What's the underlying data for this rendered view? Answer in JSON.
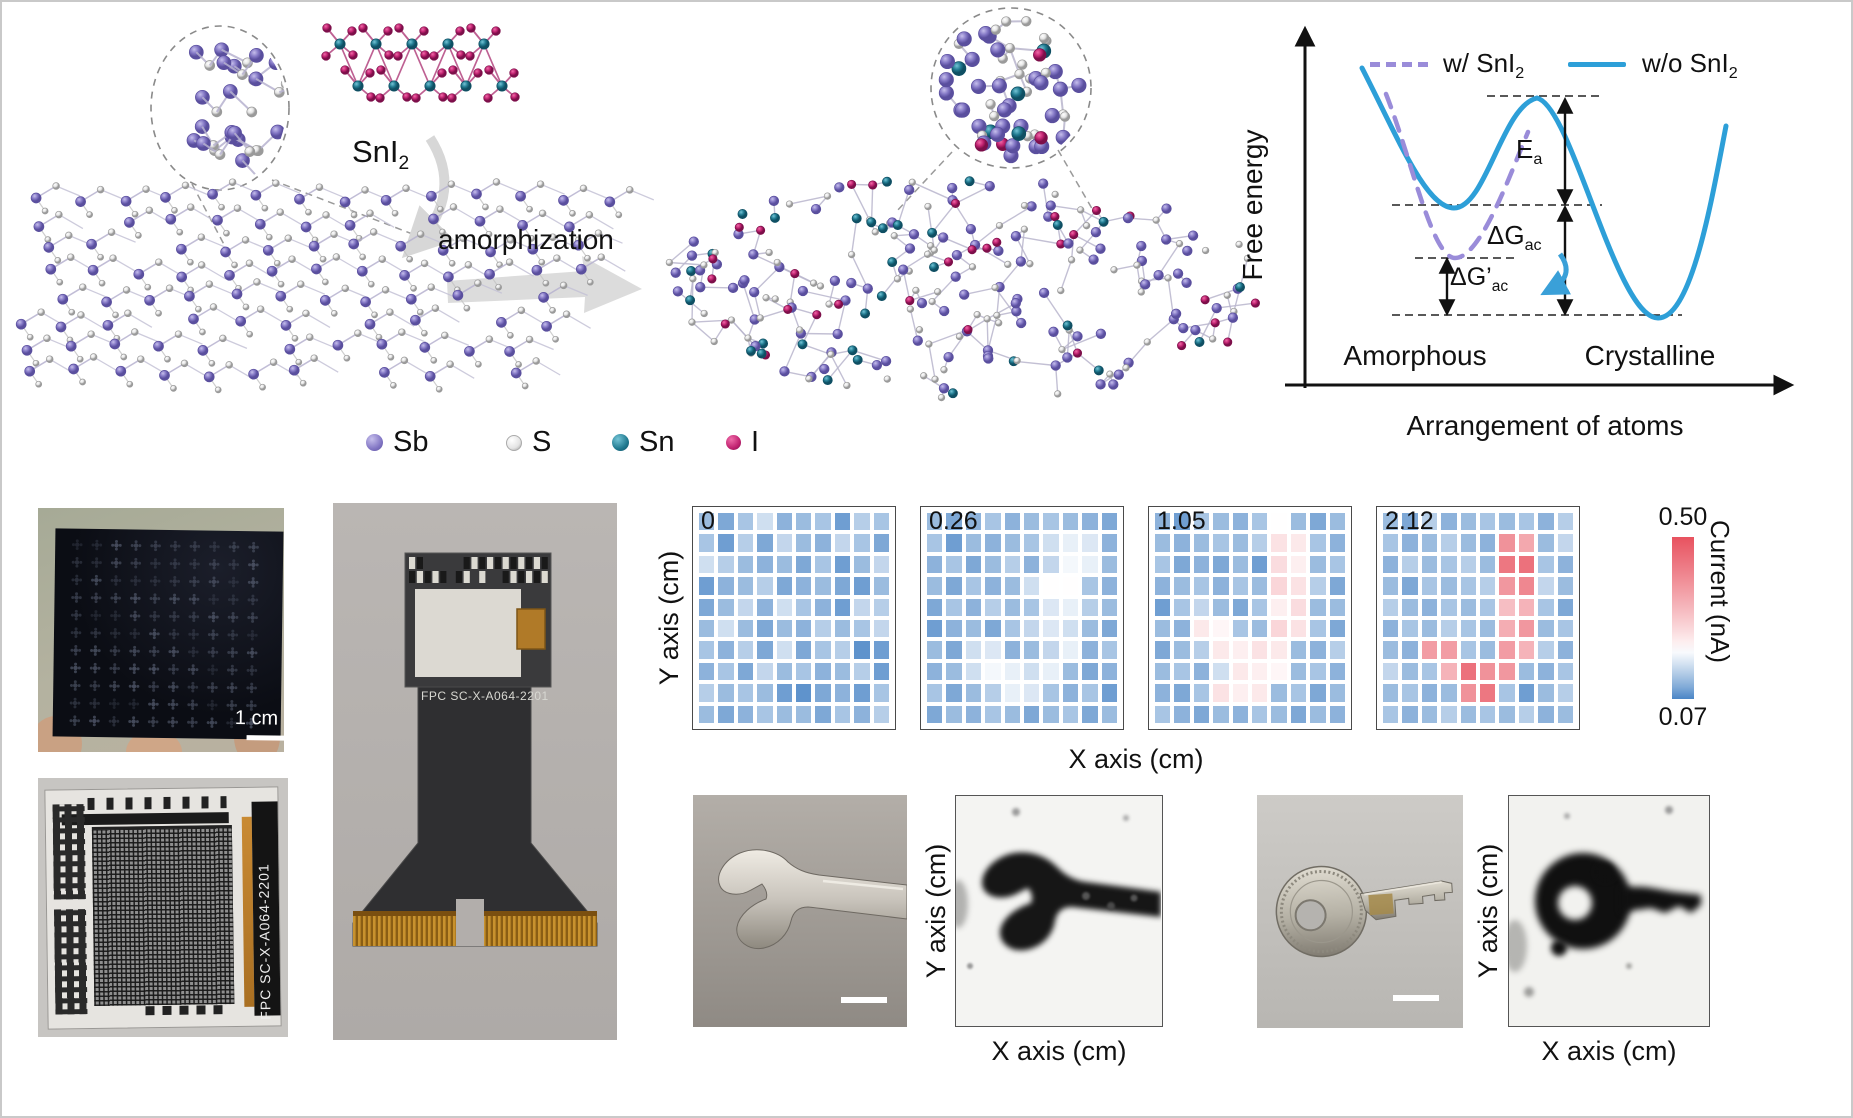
{
  "schematic": {
    "snl2": {
      "base": "SnI",
      "sub": "2"
    },
    "process_label": "amorphization",
    "atom_legend": [
      {
        "symbol": "Sb",
        "color": "#8276c4",
        "highlight": "#c6bfec",
        "edge": "#5a4f9e"
      },
      {
        "symbol": "S",
        "color": "#e4e4e4",
        "highlight": "#ffffff",
        "edge": "#9a9a9a"
      },
      {
        "symbol": "Sn",
        "color": "#20798f",
        "highlight": "#74c4d6",
        "edge": "#0f4f63"
      },
      {
        "symbol": "I",
        "color": "#c02270",
        "highlight": "#ef6ba8",
        "edge": "#7d0f4a"
      }
    ]
  },
  "energy": {
    "y_axis": "Free energy",
    "x_axis": "Arrangement of atoms",
    "legend_w": {
      "base": "w/ SnI",
      "sub": "2"
    },
    "legend_wo": {
      "base": "w/o SnI",
      "sub": "2"
    },
    "colors": {
      "with_snl2": "#9a8cd9",
      "without_snl2": "#2d9fd8"
    },
    "ea": {
      "base": "E",
      "sub": "a"
    },
    "dg_ac": {
      "base": "ΔG",
      "sub": "ac"
    },
    "dg_ac_prime": {
      "base": "ΔG’",
      "sub": "ac"
    },
    "state_left": "Amorphous",
    "state_right": "Crystalline"
  },
  "heatmap_section": {
    "x_axis": "X axis (cm)",
    "y_axis": "Y axis (cm)",
    "colorbar": {
      "title": "Current (nA)",
      "max": "0.50",
      "min": "0.07"
    }
  },
  "chart_data": [
    {
      "type": "heatmap",
      "label": "0",
      "unit": "nA",
      "range": [
        0.07,
        0.5
      ],
      "values": [
        [
          0.12,
          0.1,
          0.13,
          0.16,
          0.11,
          0.12,
          0.13,
          0.09,
          0.14,
          0.13
        ],
        [
          0.13,
          0.09,
          0.14,
          0.1,
          0.15,
          0.12,
          0.11,
          0.15,
          0.13,
          0.1
        ],
        [
          0.16,
          0.14,
          0.12,
          0.11,
          0.12,
          0.1,
          0.13,
          0.09,
          0.12,
          0.15
        ],
        [
          0.09,
          0.11,
          0.12,
          0.14,
          0.1,
          0.11,
          0.12,
          0.1,
          0.09,
          0.12
        ],
        [
          0.1,
          0.12,
          0.15,
          0.11,
          0.16,
          0.13,
          0.11,
          0.09,
          0.15,
          0.14
        ],
        [
          0.12,
          0.16,
          0.12,
          0.1,
          0.12,
          0.11,
          0.14,
          0.12,
          0.13,
          0.15
        ],
        [
          0.13,
          0.11,
          0.14,
          0.1,
          0.16,
          0.1,
          0.13,
          0.14,
          0.08,
          0.09
        ],
        [
          0.11,
          0.13,
          0.1,
          0.15,
          0.12,
          0.13,
          0.11,
          0.12,
          0.14,
          0.09
        ],
        [
          0.14,
          0.12,
          0.13,
          0.12,
          0.09,
          0.08,
          0.1,
          0.11,
          0.09,
          0.13
        ],
        [
          0.12,
          0.1,
          0.11,
          0.13,
          0.12,
          0.12,
          0.1,
          0.13,
          0.11,
          0.14
        ]
      ]
    },
    {
      "type": "heatmap",
      "label": "0.26",
      "unit": "nA",
      "range": [
        0.07,
        0.5
      ],
      "values": [
        [
          0.12,
          0.1,
          0.11,
          0.13,
          0.11,
          0.12,
          0.13,
          0.12,
          0.11,
          0.1
        ],
        [
          0.13,
          0.09,
          0.12,
          0.11,
          0.12,
          0.13,
          0.16,
          0.18,
          0.17,
          0.11
        ],
        [
          0.11,
          0.13,
          0.1,
          0.12,
          0.14,
          0.11,
          0.15,
          0.19,
          0.18,
          0.12
        ],
        [
          0.12,
          0.1,
          0.13,
          0.11,
          0.12,
          0.16,
          0.2,
          0.2,
          0.13,
          0.11
        ],
        [
          0.1,
          0.13,
          0.11,
          0.14,
          0.12,
          0.13,
          0.17,
          0.18,
          0.14,
          0.12
        ],
        [
          0.09,
          0.11,
          0.12,
          0.1,
          0.13,
          0.15,
          0.17,
          0.16,
          0.12,
          0.1
        ],
        [
          0.12,
          0.1,
          0.16,
          0.17,
          0.11,
          0.12,
          0.15,
          0.18,
          0.11,
          0.13
        ],
        [
          0.11,
          0.12,
          0.16,
          0.19,
          0.18,
          0.16,
          0.18,
          0.12,
          0.1,
          0.11
        ],
        [
          0.13,
          0.1,
          0.12,
          0.14,
          0.18,
          0.17,
          0.13,
          0.11,
          0.13,
          0.09
        ],
        [
          0.1,
          0.12,
          0.11,
          0.13,
          0.12,
          0.1,
          0.12,
          0.13,
          0.1,
          0.12
        ]
      ]
    },
    {
      "type": "heatmap",
      "label": "1.05",
      "unit": "nA",
      "range": [
        0.07,
        0.5
      ],
      "values": [
        [
          0.11,
          0.09,
          0.13,
          0.12,
          0.11,
          0.13,
          0.2,
          0.12,
          0.1,
          0.12
        ],
        [
          0.12,
          0.11,
          0.12,
          0.13,
          0.12,
          0.14,
          0.24,
          0.23,
          0.13,
          0.11
        ],
        [
          0.13,
          0.1,
          0.11,
          0.1,
          0.12,
          0.09,
          0.25,
          0.22,
          0.12,
          0.13
        ],
        [
          0.11,
          0.12,
          0.13,
          0.11,
          0.13,
          0.12,
          0.26,
          0.24,
          0.14,
          0.1
        ],
        [
          0.09,
          0.13,
          0.15,
          0.12,
          0.1,
          0.13,
          0.22,
          0.25,
          0.12,
          0.12
        ],
        [
          0.12,
          0.11,
          0.23,
          0.21,
          0.13,
          0.12,
          0.26,
          0.24,
          0.13,
          0.1
        ],
        [
          0.1,
          0.12,
          0.14,
          0.23,
          0.22,
          0.24,
          0.23,
          0.12,
          0.11,
          0.14
        ],
        [
          0.12,
          0.13,
          0.11,
          0.16,
          0.23,
          0.22,
          0.21,
          0.12,
          0.13,
          0.11
        ],
        [
          0.11,
          0.1,
          0.13,
          0.24,
          0.22,
          0.23,
          0.12,
          0.13,
          0.1,
          0.12
        ],
        [
          0.13,
          0.11,
          0.1,
          0.12,
          0.11,
          0.13,
          0.12,
          0.1,
          0.12,
          0.11
        ]
      ]
    },
    {
      "type": "heatmap",
      "label": "2.12",
      "unit": "nA",
      "range": [
        0.07,
        0.5
      ],
      "values": [
        [
          0.12,
          0.1,
          0.14,
          0.11,
          0.12,
          0.13,
          0.12,
          0.13,
          0.11,
          0.14
        ],
        [
          0.13,
          0.11,
          0.12,
          0.14,
          0.12,
          0.11,
          0.38,
          0.34,
          0.12,
          0.15
        ],
        [
          0.11,
          0.14,
          0.12,
          0.13,
          0.14,
          0.12,
          0.43,
          0.44,
          0.13,
          0.11
        ],
        [
          0.12,
          0.1,
          0.13,
          0.12,
          0.13,
          0.14,
          0.37,
          0.4,
          0.15,
          0.12
        ],
        [
          0.14,
          0.12,
          0.11,
          0.13,
          0.12,
          0.13,
          0.3,
          0.32,
          0.13,
          0.1
        ],
        [
          0.11,
          0.13,
          0.12,
          0.14,
          0.13,
          0.12,
          0.33,
          0.37,
          0.12,
          0.13
        ],
        [
          0.12,
          0.11,
          0.36,
          0.36,
          0.13,
          0.12,
          0.36,
          0.32,
          0.14,
          0.11
        ],
        [
          0.15,
          0.12,
          0.13,
          0.32,
          0.44,
          0.38,
          0.37,
          0.12,
          0.11,
          0.13
        ],
        [
          0.12,
          0.13,
          0.11,
          0.12,
          0.38,
          0.43,
          0.13,
          0.09,
          0.12,
          0.14
        ],
        [
          0.13,
          0.11,
          0.12,
          0.14,
          0.12,
          0.13,
          0.12,
          0.14,
          0.11,
          0.12
        ]
      ]
    }
  ],
  "photos": {
    "film": {
      "scale_bar": "1 cm"
    },
    "fpc_panel": {
      "marking": "FPC SC-X-A064-2201"
    },
    "fpc_ribbon": {
      "marking": "FPC SC-X-A064-2201"
    },
    "wrench_map": {
      "x_axis": "X axis (cm)",
      "y_axis": "Y axis (cm)"
    },
    "key_map": {
      "x_axis": "X axis (cm)",
      "y_axis": "Y axis (cm)"
    }
  }
}
